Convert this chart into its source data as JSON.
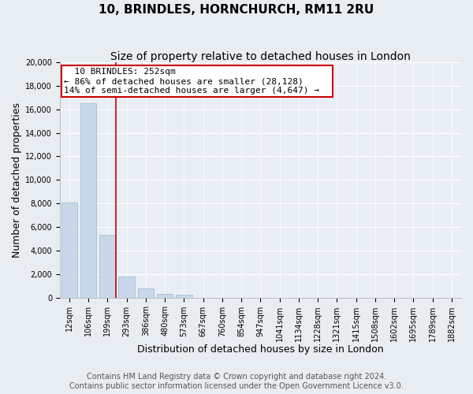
{
  "title": "10, BRINDLES, HORNCHURCH, RM11 2RU",
  "subtitle": "Size of property relative to detached houses in London",
  "xlabel": "Distribution of detached houses by size in London",
  "ylabel": "Number of detached properties",
  "bar_labels": [
    "12sqm",
    "106sqm",
    "199sqm",
    "293sqm",
    "386sqm",
    "480sqm",
    "573sqm",
    "667sqm",
    "760sqm",
    "854sqm",
    "947sqm",
    "1041sqm",
    "1134sqm",
    "1228sqm",
    "1321sqm",
    "1415sqm",
    "1508sqm",
    "1602sqm",
    "1695sqm",
    "1789sqm",
    "1882sqm"
  ],
  "bar_heights": [
    8100,
    16500,
    5300,
    1800,
    800,
    300,
    250,
    0,
    0,
    0,
    0,
    0,
    0,
    0,
    0,
    0,
    0,
    0,
    0,
    0,
    0
  ],
  "bar_color": "#c8d8ea",
  "bar_edge_color": "#9ab8cc",
  "marker_color": "#cc0000",
  "ylim": [
    0,
    20000
  ],
  "yticks": [
    0,
    2000,
    4000,
    6000,
    8000,
    10000,
    12000,
    14000,
    16000,
    18000,
    20000
  ],
  "annotation_title": "10 BRINDLES: 252sqm",
  "annotation_line1": "← 86% of detached houses are smaller (28,128)",
  "annotation_line2": "14% of semi-detached houses are larger (4,647) →",
  "annotation_box_facecolor": "#ffffff",
  "annotation_box_edgecolor": "#cc0000",
  "footer_line1": "Contains HM Land Registry data © Crown copyright and database right 2024.",
  "footer_line2": "Contains public sector information licensed under the Open Government Licence v3.0.",
  "fig_facecolor": "#e8edf2",
  "plot_facecolor": "#e8eef4",
  "grid_color": "#ffffff",
  "title_fontsize": 11,
  "subtitle_fontsize": 10,
  "axis_label_fontsize": 9,
  "tick_fontsize": 7,
  "annotation_fontsize": 8,
  "footer_fontsize": 7
}
